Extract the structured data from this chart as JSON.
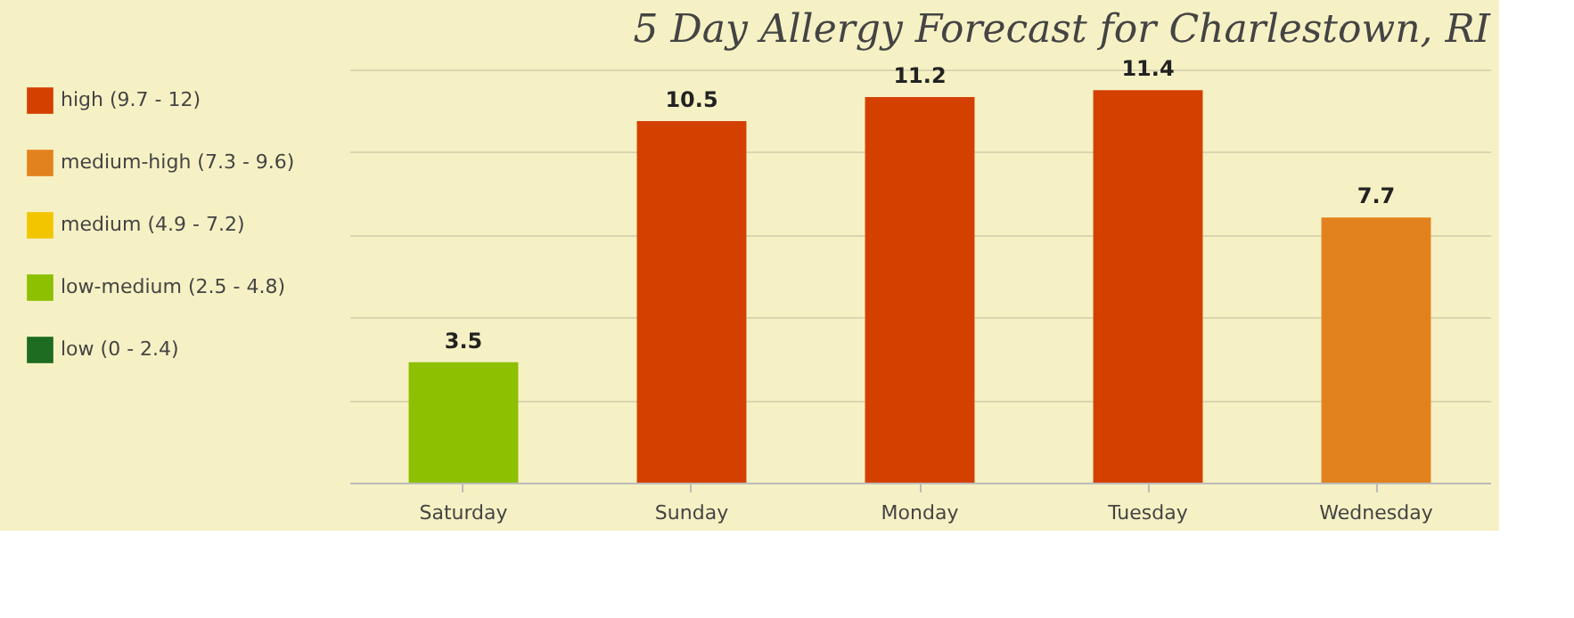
{
  "chart_data": {
    "type": "bar",
    "title": "5 Day Allergy Forecast for Charlestown, RI",
    "categories": [
      "Saturday",
      "Sunday",
      "Monday",
      "Tuesday",
      "Wednesday"
    ],
    "series": [
      {
        "name": "high (9.7 - 12)",
        "color": "#d44000",
        "values": [
          null,
          10.5,
          11.2,
          11.4,
          null
        ]
      },
      {
        "name": "medium-high (7.3 - 9.6)",
        "color": "#e2821e",
        "values": [
          null,
          null,
          null,
          null,
          7.7
        ]
      },
      {
        "name": "medium (4.9 - 7.2)",
        "color": "#f2c500",
        "values": [
          null,
          null,
          null,
          null,
          null
        ]
      },
      {
        "name": "low-medium (2.5 - 4.8)",
        "color": "#8cc000",
        "values": [
          3.5,
          null,
          null,
          null,
          null
        ]
      },
      {
        "name": "low (0 - 2.4)",
        "color": "#1e6b22",
        "values": [
          null,
          null,
          null,
          null,
          null
        ]
      }
    ],
    "ylim": [
      0,
      12
    ],
    "yticks": [
      {
        "value": 0,
        "label": null
      },
      {
        "value": 2.4,
        "label": null
      },
      {
        "value": 4.8,
        "label": null
      },
      {
        "value": 7.2,
        "label": null
      },
      {
        "value": 9.6,
        "label": null
      },
      {
        "value": 12,
        "label": null
      }
    ],
    "tick_labels": "x",
    "grid": "y",
    "legend": "left",
    "data_labels": true
  }
}
